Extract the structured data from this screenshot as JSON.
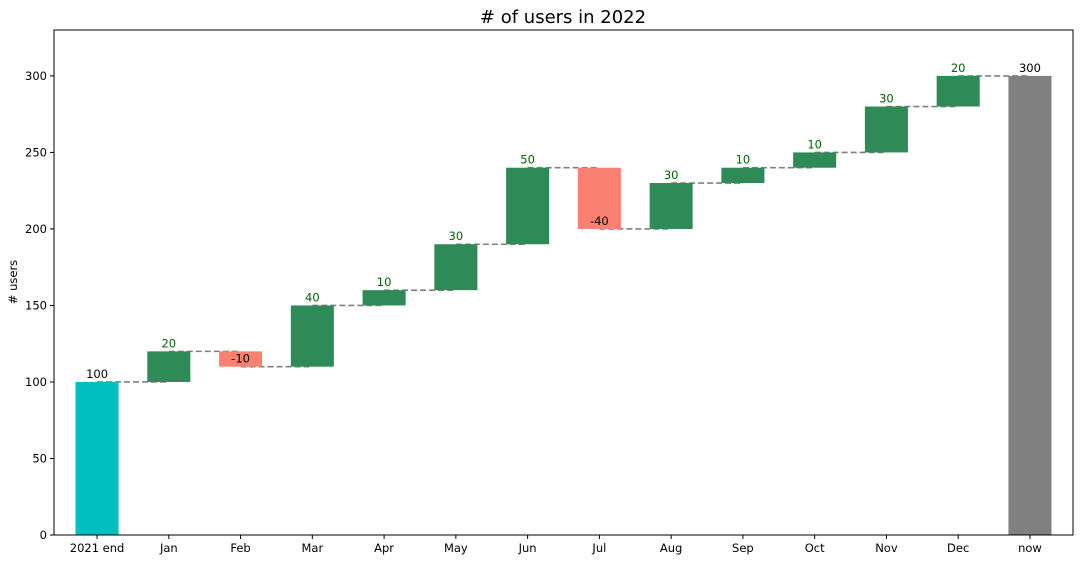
{
  "chart_data": {
    "type": "bar",
    "title": "# of users in 2022",
    "xlabel": "",
    "ylabel": "# users",
    "ylim": [
      0,
      330
    ],
    "yticks": [
      0,
      50,
      100,
      150,
      200,
      250,
      300
    ],
    "categories": [
      "2021 end",
      "Jan",
      "Feb",
      "Mar",
      "Apr",
      "May",
      "Jun",
      "Jul",
      "Aug",
      "Sep",
      "Oct",
      "Nov",
      "Dec",
      "now"
    ],
    "values": [
      100,
      20,
      -10,
      40,
      10,
      30,
      50,
      -40,
      30,
      10,
      10,
      30,
      20,
      300
    ],
    "bar_labels": [
      "100",
      "20",
      "-10",
      "40",
      "10",
      "30",
      "50",
      "-40",
      "30",
      "10",
      "10",
      "30",
      "20",
      "300"
    ],
    "colors": {
      "start": "#00BFBF",
      "increase": "#2E8B57",
      "decrease": "#FA8072",
      "end": "#808080",
      "connector": "#808080",
      "increase_label": "#006400",
      "other_label": "#000000"
    },
    "grid": false,
    "legend": "none"
  }
}
